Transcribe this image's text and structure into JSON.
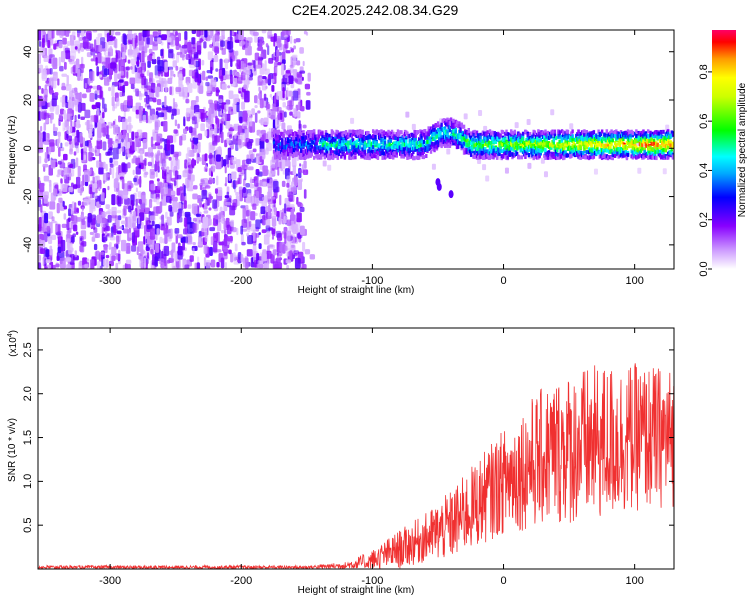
{
  "title": "C2E4.2025.242.08.34.G29",
  "chart_data": [
    {
      "type": "heatmap",
      "xlabel": "Height of straight line (km)",
      "ylabel": "Frequency (Hz)",
      "xlim": [
        -355,
        130
      ],
      "ylim": [
        -50,
        49
      ],
      "xticks": [
        -300,
        -200,
        -100,
        0,
        100
      ],
      "yticks": [
        -40,
        -20,
        0,
        20,
        40
      ],
      "xtick_labels": [
        "-300",
        "-200",
        "-100",
        "0",
        "100"
      ],
      "ytick_labels": [
        "-40",
        "-20",
        "0",
        "20",
        "40"
      ],
      "noise_region_x": [
        -355,
        -145
      ],
      "signal_band": {
        "x_start": -175,
        "x_end": 130,
        "center_hz": 1.5,
        "width_hz": 7
      },
      "colorbar": {
        "label": "Normalized spectral amplitude",
        "range": [
          0,
          0.97
        ],
        "ticks": [
          0.0,
          0.2,
          0.4,
          0.6,
          0.8
        ],
        "tick_labels": [
          "0.0",
          "0.2",
          "0.4",
          "0.6",
          "0.8"
        ]
      }
    },
    {
      "type": "line",
      "series_name": "SNR",
      "color": "#f03030",
      "xlabel": "Height of straight line (km)",
      "ylabel": "SNR (10 * v/v)",
      "y_multiplier_label": "(x10",
      "y_multiplier_exp": "4",
      "xlim": [
        -355,
        130
      ],
      "ylim": [
        0,
        2.75
      ],
      "xticks": [
        -300,
        -200,
        -100,
        0,
        100
      ],
      "yticks": [
        0.5,
        1.0,
        1.5,
        2.0,
        2.5
      ],
      "xtick_labels": [
        "-300",
        "-200",
        "-100",
        "0",
        "100"
      ],
      "ytick_labels": [
        "0.5",
        "1.0",
        "1.5",
        "2.0",
        "2.5"
      ],
      "envelope": {
        "x": [
          -355,
          -150,
          -120,
          -100,
          -80,
          -60,
          -40,
          -20,
          0,
          20,
          40,
          60,
          80,
          100,
          130
        ],
        "mean": [
          0.02,
          0.02,
          0.04,
          0.1,
          0.22,
          0.35,
          0.5,
          0.75,
          1.0,
          1.2,
          1.35,
          1.4,
          1.45,
          1.5,
          1.5
        ],
        "spread": [
          0.02,
          0.02,
          0.04,
          0.12,
          0.22,
          0.28,
          0.4,
          0.5,
          0.6,
          0.75,
          0.85,
          0.9,
          0.9,
          0.85,
          0.8
        ]
      }
    }
  ]
}
